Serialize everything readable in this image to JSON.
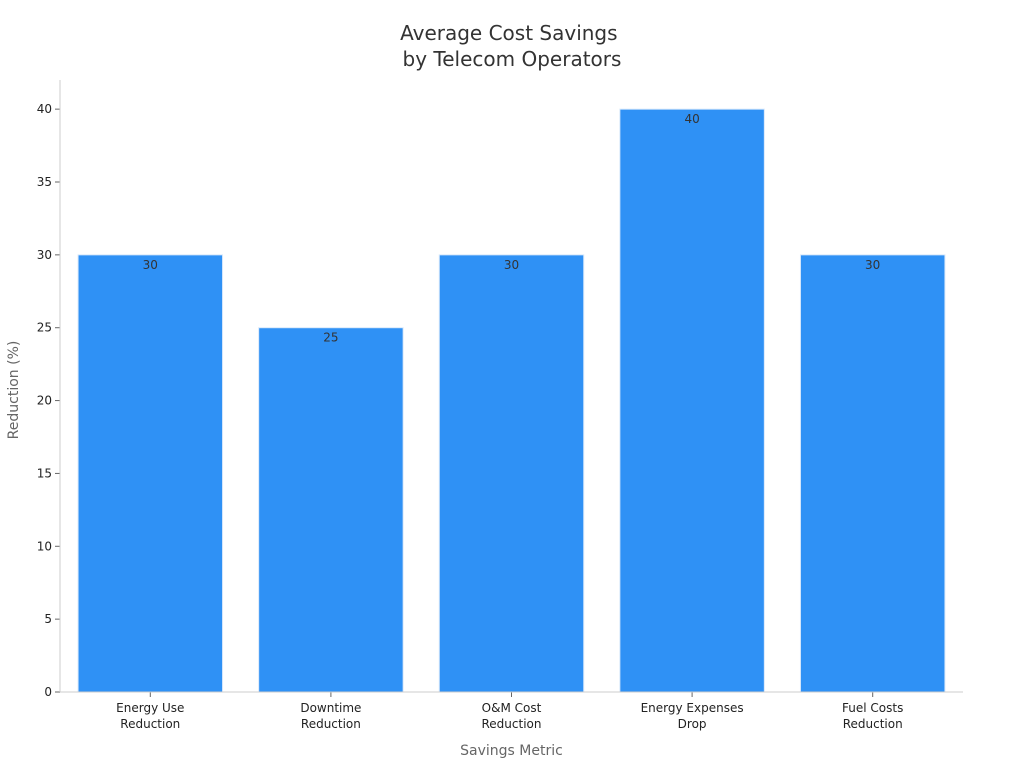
{
  "chart_data": {
    "type": "bar",
    "title": [
      "Average Cost Savings",
      "by Telecom Operators"
    ],
    "xlabel": "Savings Metric",
    "ylabel": "Reduction (%)",
    "categories": [
      [
        "Energy Use",
        "Reduction"
      ],
      [
        "Downtime",
        "Reduction"
      ],
      [
        "O&M Cost",
        "Reduction"
      ],
      [
        "Energy Expenses",
        "Drop"
      ],
      [
        "Fuel Costs",
        "Reduction"
      ]
    ],
    "values": [
      30,
      25,
      30,
      40,
      30
    ],
    "ylim": [
      0,
      42
    ],
    "yticks": [
      0,
      5,
      10,
      15,
      20,
      25,
      30,
      35,
      40
    ],
    "grid": false,
    "data_labels": true,
    "bar_color": "#2f91f5",
    "bar_edge_color": "#d9e9fb"
  }
}
